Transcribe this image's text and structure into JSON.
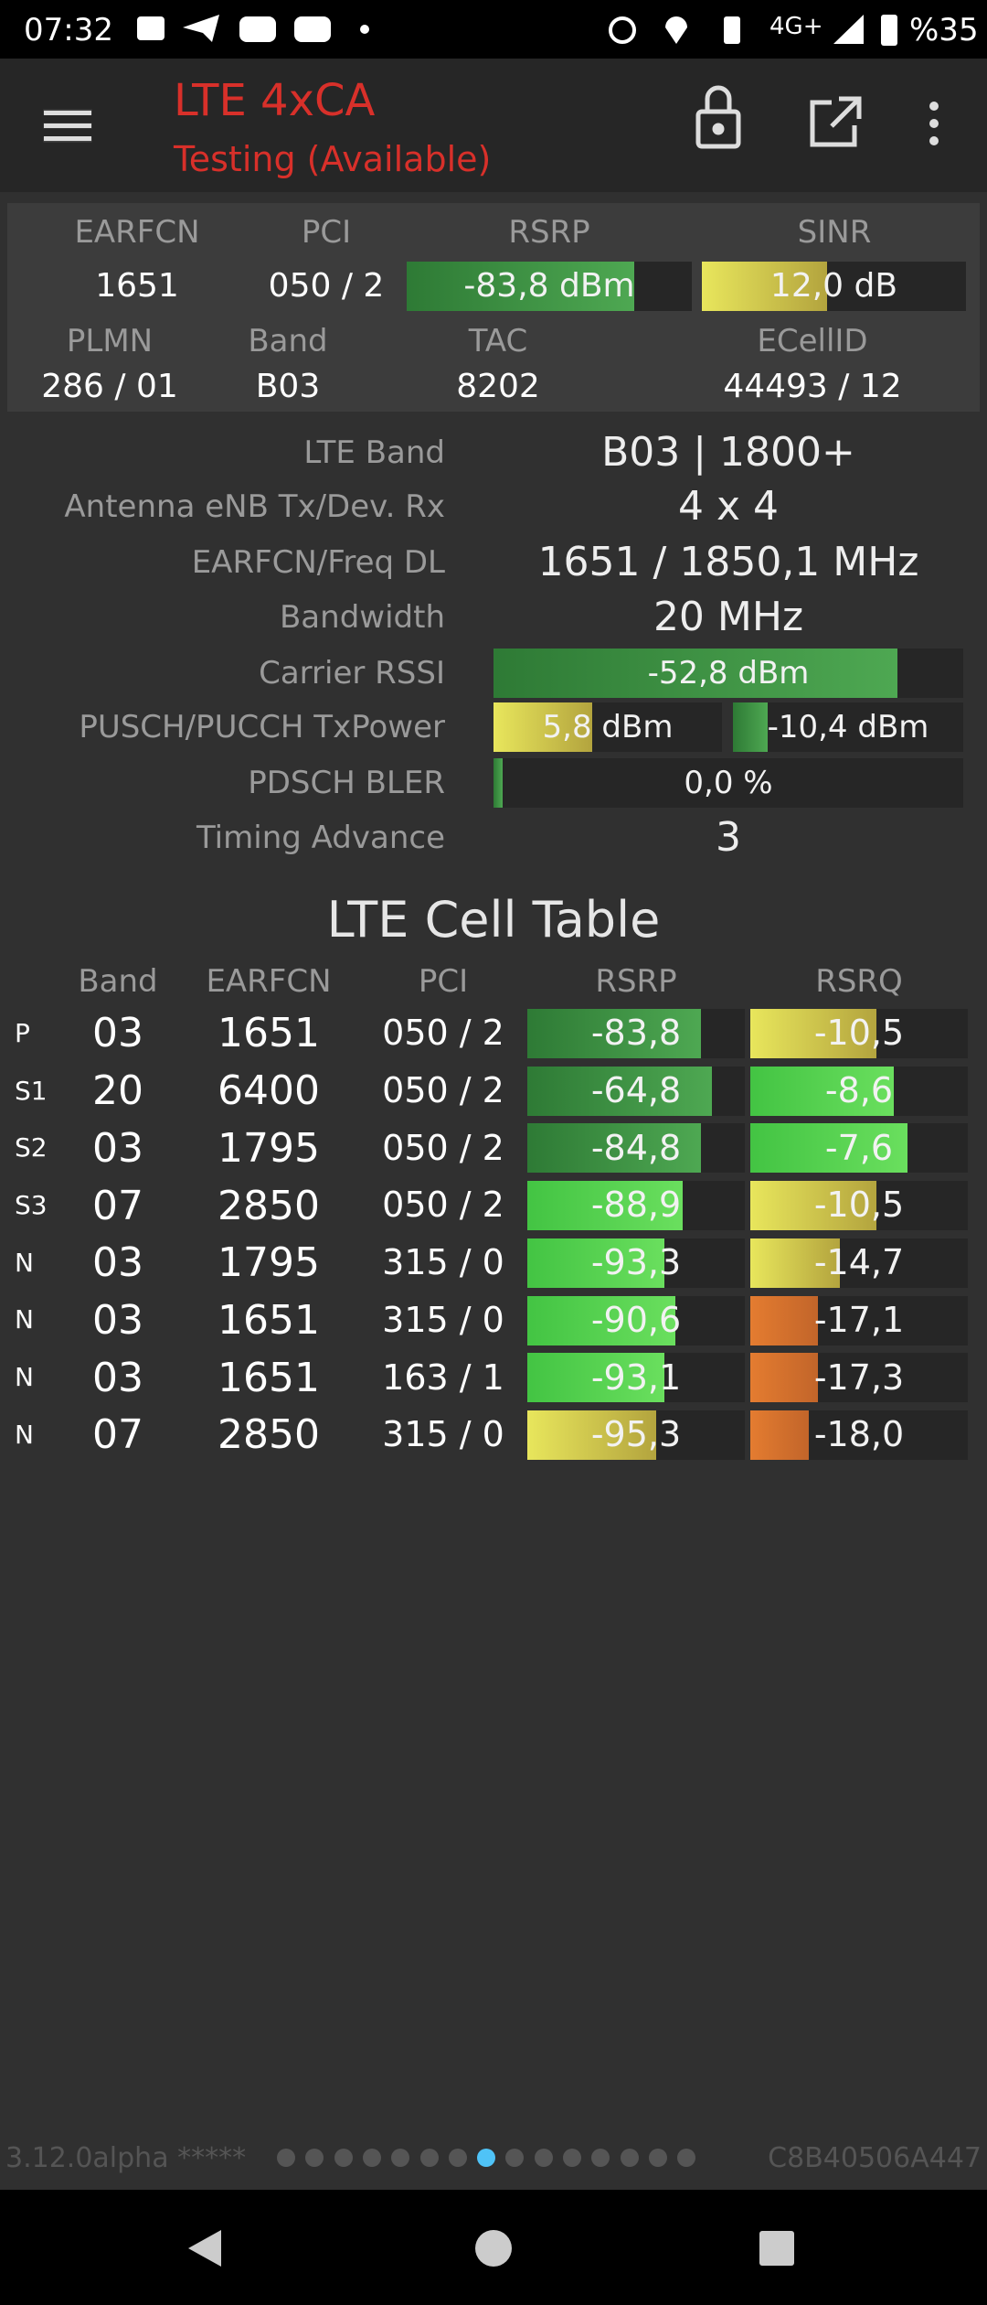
{
  "status_bar": {
    "time": "07:32",
    "network": "4G+",
    "battery": "%35"
  },
  "app_bar": {
    "title": "LTE 4xCA",
    "subtitle": "Testing (Available)"
  },
  "serving": {
    "headers": [
      "EARFCN",
      "PCI",
      "RSRP",
      "SINR"
    ],
    "values": [
      "1651",
      "050 / 2",
      "-83,8 dBm",
      "12,0 dB"
    ],
    "headers2": [
      "PLMN",
      "Band",
      "TAC",
      "ECellID"
    ],
    "values2": [
      "286 / 01",
      "B03",
      "8202",
      "44493 / 12"
    ]
  },
  "details": [
    {
      "label": "LTE Band",
      "values": [
        "B03 | 1800+"
      ]
    },
    {
      "label": "Antenna eNB Tx/Dev. Rx",
      "values": [
        "4 x 4"
      ]
    },
    {
      "label": "EARFCN/Freq DL",
      "values": [
        "1651 / 1850,1 MHz"
      ]
    },
    {
      "label": "Bandwidth",
      "values": [
        "20 MHz"
      ]
    },
    {
      "label": "Carrier RSSI",
      "values": [
        "-52,8 dBm"
      ]
    },
    {
      "label": "PUSCH/PUCCH TxPower",
      "values": [
        "5,8 dBm",
        "-10,4 dBm"
      ]
    },
    {
      "label": "PDSCH BLER",
      "values": [
        "0,0 %"
      ]
    },
    {
      "label": "Timing Advance",
      "values": [
        "3"
      ]
    }
  ],
  "cell_table": {
    "title": "LTE Cell Table",
    "columns": [
      "Band",
      "EARFCN",
      "PCI",
      "RSRP",
      "RSRQ"
    ],
    "rows": [
      [
        "P",
        "03",
        "1651",
        "050 / 2",
        "-83,8",
        "-10,5"
      ],
      [
        "S1",
        "20",
        "6400",
        "050 / 2",
        "-64,8",
        "-8,6"
      ],
      [
        "S2",
        "03",
        "1795",
        "050 / 2",
        "-84,8",
        "-7,6"
      ],
      [
        "S3",
        "07",
        "2850",
        "050 / 2",
        "-88,9",
        "-10,5"
      ],
      [
        "N",
        "03",
        "1795",
        "315 / 0",
        "-93,3",
        "-14,7"
      ],
      [
        "N",
        "03",
        "1651",
        "315 / 0",
        "-90,6",
        "-17,1"
      ],
      [
        "N",
        "03",
        "1651",
        "163 / 1",
        "-93,1",
        "-17,3"
      ],
      [
        "N",
        "07",
        "2850",
        "315 / 0",
        "-95,3",
        "-18,0"
      ]
    ]
  },
  "footer": {
    "version": "3.12.0alpha *****",
    "id": "C8B40506A447"
  }
}
